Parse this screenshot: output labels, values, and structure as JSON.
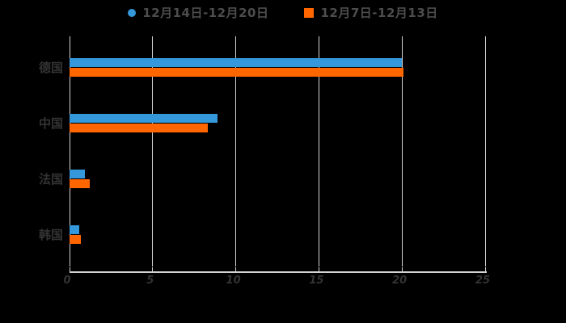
{
  "background_color": "#000000",
  "legend": [
    {
      "label": "12月14日-12月20日",
      "color": "#3498db",
      "marker": "circle"
    },
    {
      "label": "12月7日-12月13日",
      "color": "#ff6600",
      "marker": "square"
    }
  ],
  "chart_data": {
    "type": "bar",
    "orientation": "horizontal",
    "title": "",
    "xlabel": "",
    "ylabel": "",
    "categories": [
      "德国",
      "中国",
      "法国",
      "韩国"
    ],
    "series": [
      {
        "name": "12月14日-12月20日",
        "color": "#3498db",
        "values": [
          20,
          8.9,
          0.9,
          0.6
        ]
      },
      {
        "name": "12月7日-12月13日",
        "color": "#ff6600",
        "values": [
          20.1,
          8.3,
          1.2,
          0.7
        ]
      }
    ],
    "xlim": [
      0,
      25
    ],
    "x_ticks": [
      0,
      5,
      10,
      15,
      20,
      25
    ],
    "grid": true,
    "legend_position": "top",
    "gridline_color": "#d3d3d3",
    "axis_text_color": "#333333",
    "legend_text_color": "#4d4d4d"
  }
}
